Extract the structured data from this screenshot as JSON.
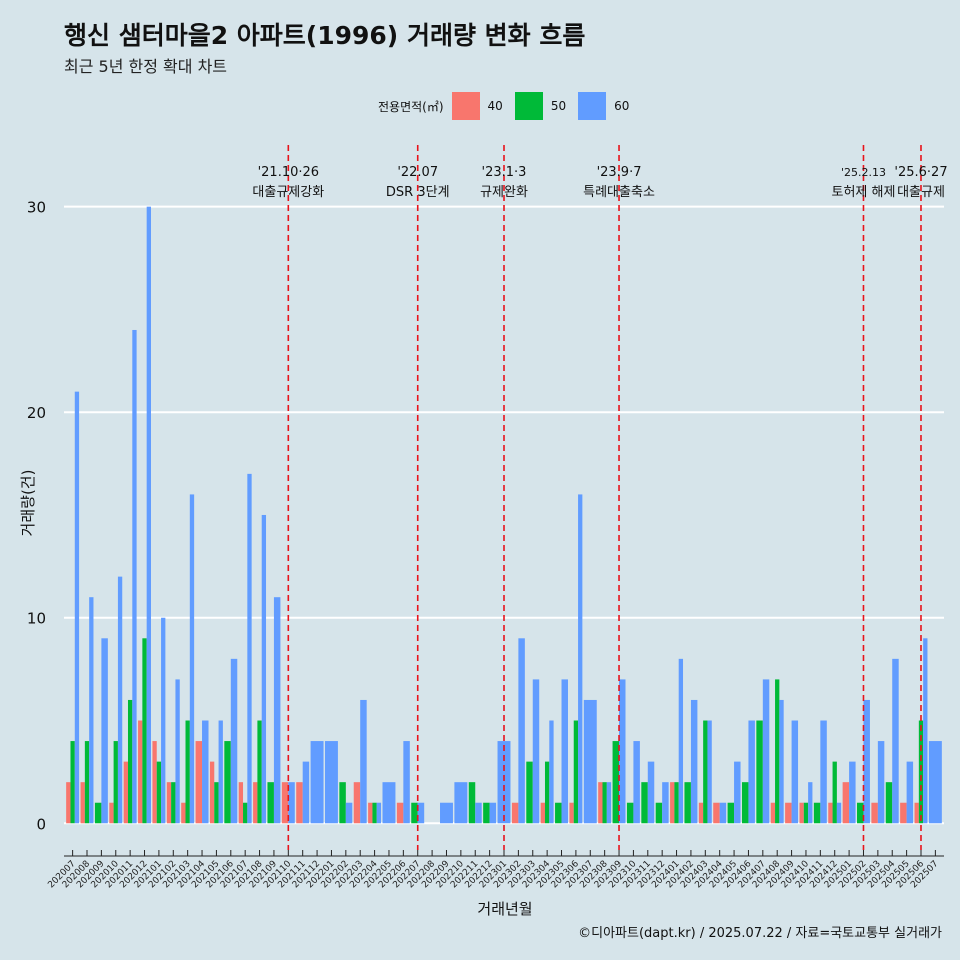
{
  "chart_data": {
    "type": "bar",
    "title": "행신 샘터마을2 아파트(1996) 거래량 변화 흐름",
    "subtitle": "최근 5년 한정 확대 차트",
    "xlabel": "거래년월",
    "ylabel": "거래량(건)",
    "ylim": [
      -1.3,
      33
    ],
    "yticks": [
      0,
      10,
      20,
      30
    ],
    "legend": {
      "title": "전용면적(㎡)",
      "position": "top"
    },
    "categories": [
      "202007",
      "202008",
      "202009",
      "202010",
      "202011",
      "202012",
      "202101",
      "202102",
      "202103",
      "202104",
      "202105",
      "202106",
      "202107",
      "202108",
      "202109",
      "202110",
      "202111",
      "202112",
      "202201",
      "202202",
      "202203",
      "202204",
      "202205",
      "202206",
      "202207",
      "202208",
      "202209",
      "202210",
      "202211",
      "202212",
      "202301",
      "202302",
      "202303",
      "202304",
      "202305",
      "202306",
      "202307",
      "202308",
      "202309",
      "202310",
      "202311",
      "202312",
      "202401",
      "202402",
      "202403",
      "202404",
      "202405",
      "202406",
      "202407",
      "202408",
      "202409",
      "202410",
      "202411",
      "202412",
      "202501",
      "202502",
      "202503",
      "202504",
      "202505",
      "202506",
      "202507"
    ],
    "series": [
      {
        "name": "40",
        "color": "#f8766d",
        "values": [
          2,
          2,
          0,
          1,
          3,
          5,
          4,
          2,
          1,
          4,
          3,
          0,
          2,
          2,
          0,
          2,
          2,
          0,
          0,
          0,
          2,
          1,
          0,
          1,
          0,
          0,
          0,
          0,
          0,
          0,
          0,
          1,
          0,
          1,
          0,
          1,
          0,
          2,
          0,
          0,
          0,
          0,
          2,
          0,
          1,
          1,
          0,
          0,
          0,
          1,
          1,
          1,
          0,
          1,
          2,
          0,
          1,
          0,
          1,
          1,
          0
        ]
      },
      {
        "name": "50",
        "color": "#00ba38",
        "values": [
          4,
          4,
          1,
          4,
          6,
          9,
          3,
          2,
          5,
          0,
          2,
          4,
          1,
          5,
          2,
          0,
          0,
          0,
          0,
          2,
          0,
          1,
          0,
          0,
          1,
          0,
          0,
          0,
          2,
          1,
          0,
          0,
          3,
          3,
          1,
          5,
          0,
          2,
          4,
          1,
          2,
          1,
          2,
          2,
          5,
          0,
          1,
          2,
          5,
          7,
          0,
          1,
          1,
          3,
          0,
          1,
          0,
          2,
          0,
          5,
          0
        ]
      },
      {
        "name": "60",
        "color": "#619cff",
        "values": [
          21,
          11,
          9,
          12,
          24,
          30,
          10,
          7,
          16,
          5,
          5,
          8,
          17,
          15,
          11,
          2,
          3,
          4,
          4,
          1,
          6,
          1,
          2,
          4,
          1,
          0,
          1,
          2,
          1,
          1,
          4,
          9,
          7,
          5,
          7,
          16,
          6,
          2,
          7,
          4,
          3,
          2,
          8,
          6,
          5,
          1,
          3,
          5,
          7,
          6,
          5,
          2,
          5,
          1,
          3,
          6,
          4,
          8,
          3,
          9,
          4
        ]
      }
    ],
    "events": [
      {
        "category": "202110",
        "label_date": "'21.10·26",
        "label_text": "대출규제강화"
      },
      {
        "category": "202207",
        "label_date": "'22.07",
        "label_text": "DSR 3단계"
      },
      {
        "category": "202301",
        "label_date": "'23.1·3",
        "label_text": "규제완화"
      },
      {
        "category": "202309",
        "label_date": "'23.9·7",
        "label_text": "특례대출축소"
      },
      {
        "category": "202502",
        "label_date": "'25.2.13",
        "label_text": "토허제 해제"
      },
      {
        "category": "202506",
        "label_date": "'25.6·27",
        "label_text": "대출규제"
      }
    ],
    "grid": true,
    "caption": "©디아파트(dapt.kr) / 2025.07.22 / 자료=국토교통부 실거래가"
  }
}
